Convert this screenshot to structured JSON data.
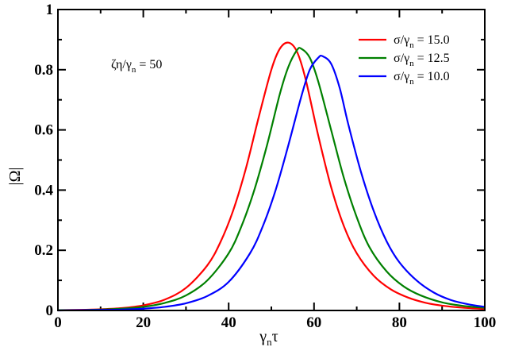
{
  "chart_data": {
    "type": "line",
    "title": "",
    "xlabel": "γ_n τ",
    "ylabel": "|Ω|",
    "xlim": [
      0,
      100
    ],
    "ylim": [
      0,
      1
    ],
    "x_ticks": [
      "0",
      "20",
      "40",
      "60",
      "80",
      "100"
    ],
    "y_ticks": [
      "0",
      "0.2",
      "0.4",
      "0.6",
      "0.8",
      "1"
    ],
    "grid": false,
    "legend_position": "top-right",
    "annotation": {
      "parts": [
        "ζη/γ",
        "n",
        " = 50"
      ]
    },
    "series": [
      {
        "name": "σ/γn = 15.0",
        "legend_parts": [
          "σ/γ",
          "n",
          " = 15.0"
        ],
        "color": "#ff0000",
        "x": [
          0,
          5,
          10,
          15,
          20,
          25,
          30,
          35,
          38,
          41,
          44,
          47,
          50,
          52,
          54,
          56,
          58,
          61,
          64,
          67,
          70,
          74,
          78,
          82,
          86,
          90,
          95,
          100
        ],
        "y": [
          0.001,
          0.002,
          0.004,
          0.008,
          0.017,
          0.036,
          0.075,
          0.15,
          0.225,
          0.33,
          0.47,
          0.64,
          0.8,
          0.87,
          0.89,
          0.86,
          0.77,
          0.58,
          0.41,
          0.28,
          0.19,
          0.115,
          0.07,
          0.043,
          0.026,
          0.016,
          0.009,
          0.005
        ]
      },
      {
        "name": "σ/γn = 12.5",
        "legend_parts": [
          "σ/γ",
          "n",
          " = 12.5"
        ],
        "color": "#008000",
        "x": [
          0,
          5,
          10,
          15,
          20,
          25,
          30,
          35,
          40,
          43,
          46,
          49,
          52,
          54,
          56,
          57,
          59,
          61,
          64,
          67,
          70,
          73,
          77,
          81,
          85,
          90,
          95,
          100
        ],
        "y": [
          0.001,
          0.001,
          0.003,
          0.006,
          0.012,
          0.025,
          0.05,
          0.1,
          0.19,
          0.28,
          0.4,
          0.55,
          0.72,
          0.81,
          0.865,
          0.87,
          0.84,
          0.76,
          0.6,
          0.44,
          0.31,
          0.21,
          0.13,
          0.08,
          0.05,
          0.027,
          0.015,
          0.009
        ]
      },
      {
        "name": "σ/γn = 10.0",
        "legend_parts": [
          "σ/γ",
          "n",
          " = 10.0"
        ],
        "color": "#0000ff",
        "x": [
          0,
          5,
          10,
          15,
          20,
          25,
          30,
          35,
          40,
          45,
          48,
          51,
          54,
          57,
          59,
          61,
          62,
          64,
          66,
          68,
          71,
          74,
          77,
          80,
          84,
          88,
          92,
          96,
          100
        ],
        "y": [
          0.0,
          0.001,
          0.002,
          0.003,
          0.006,
          0.012,
          0.024,
          0.048,
          0.095,
          0.19,
          0.28,
          0.4,
          0.55,
          0.71,
          0.8,
          0.84,
          0.845,
          0.82,
          0.74,
          0.62,
          0.46,
          0.33,
          0.23,
          0.16,
          0.1,
          0.06,
          0.035,
          0.021,
          0.012
        ]
      }
    ]
  }
}
